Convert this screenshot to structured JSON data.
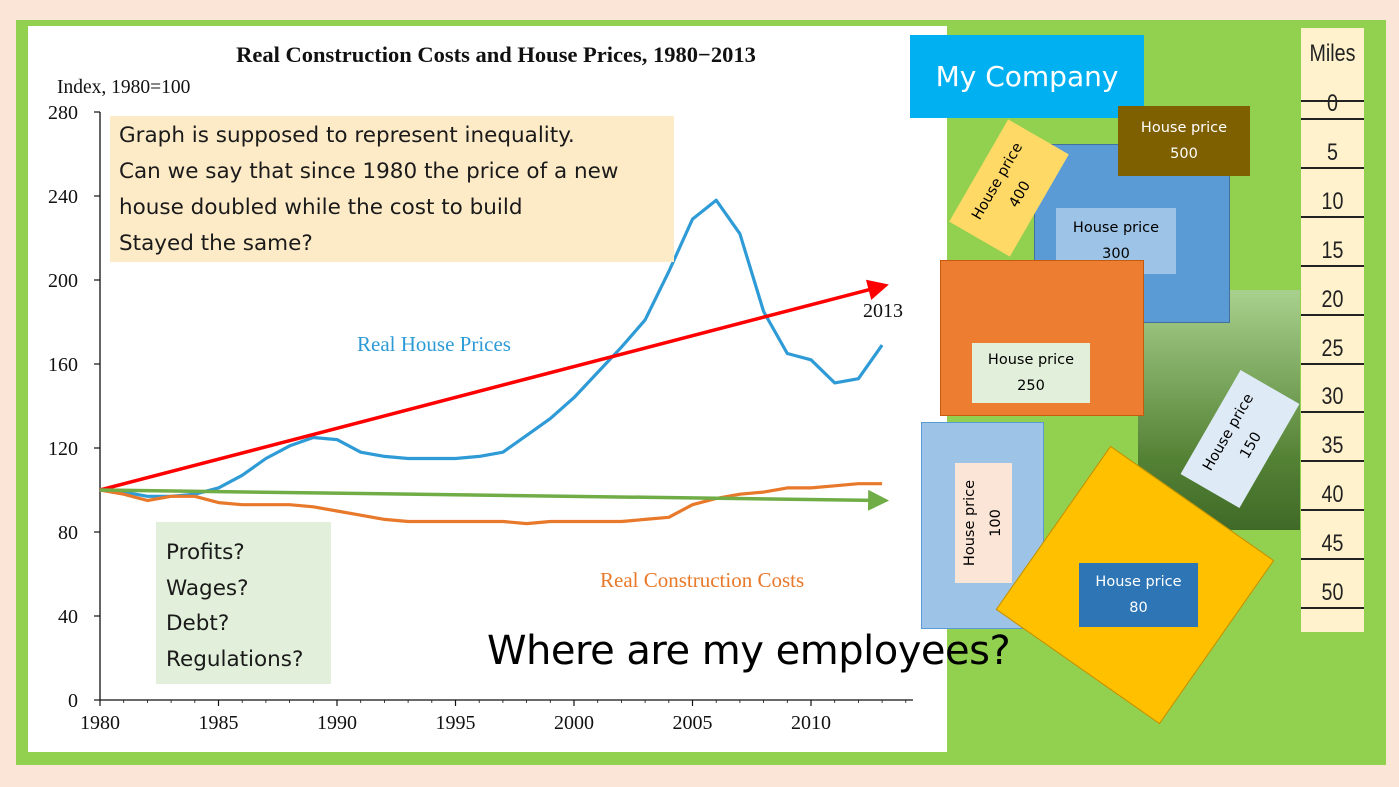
{
  "chart_data": {
    "type": "line",
    "title": "Real Construction Costs and House Prices, 1980−2013",
    "ylabel": "Index, 1980=100",
    "xlabel": "",
    "xlim": [
      1980,
      2014
    ],
    "ylim": [
      0,
      280
    ],
    "x_ticks": [
      "1980",
      "1985",
      "1990",
      "1995",
      "2000",
      "2005",
      "2010"
    ],
    "y_ticks": [
      "0",
      "40",
      "80",
      "120",
      "160",
      "200",
      "240",
      "280"
    ],
    "series": [
      {
        "name": "Real House Prices",
        "color": "#2e9bd6",
        "x": [
          1980,
          1981,
          1982,
          1983,
          1984,
          1985,
          1986,
          1987,
          1988,
          1989,
          1990,
          1991,
          1992,
          1993,
          1994,
          1995,
          1996,
          1997,
          1998,
          1999,
          2000,
          2001,
          2002,
          2003,
          2004,
          2005,
          2006,
          2007,
          2008,
          2009,
          2010,
          2011,
          2012,
          2013
        ],
        "values": [
          100,
          99,
          97,
          97,
          98,
          101,
          107,
          115,
          121,
          125,
          124,
          118,
          116,
          115,
          115,
          115,
          116,
          118,
          126,
          134,
          144,
          156,
          168,
          181,
          204,
          229,
          238,
          222,
          185,
          165,
          162,
          151,
          153,
          169
        ]
      },
      {
        "name": "Real Construction Costs",
        "color": "#e8782a",
        "x": [
          1980,
          1981,
          1982,
          1983,
          1984,
          1985,
          1986,
          1987,
          1988,
          1989,
          1990,
          1991,
          1992,
          1993,
          1994,
          1995,
          1996,
          1997,
          1998,
          1999,
          2000,
          2001,
          2002,
          2003,
          2004,
          2005,
          2006,
          2007,
          2008,
          2009,
          2010,
          2011,
          2012,
          2013
        ],
        "values": [
          100,
          98,
          95,
          97,
          97,
          94,
          93,
          93,
          93,
          92,
          90,
          88,
          86,
          85,
          85,
          85,
          85,
          85,
          84,
          85,
          85,
          85,
          85,
          86,
          87,
          93,
          96,
          98,
          99,
          101,
          101,
          102,
          103,
          103
        ]
      }
    ],
    "annotations": [
      {
        "text": "2013",
        "x": 2013,
        "y": 185
      },
      {
        "type": "arrow",
        "color": "#ff0000",
        "from": [
          1980,
          100
        ],
        "to": [
          2013,
          197
        ]
      },
      {
        "type": "arrow",
        "color": "#70ad47",
        "from": [
          1980,
          100
        ],
        "to": [
          2013,
          95
        ]
      }
    ]
  },
  "series_labels": {
    "house": "Real House Prices",
    "construction": "Real Construction Costs"
  },
  "callouts": {
    "question_lines": [
      "Graph is supposed to represent inequality.",
      "Can we say that since 1980 the price of a new",
      "house doubled while the cost to build",
      "Stayed the same?"
    ],
    "factors": [
      "Profits?",
      "Wages?",
      "Debt?",
      "Regulations?"
    ],
    "employees": "Where are my employees?"
  },
  "map": {
    "company": "My Company",
    "house_label": "House price",
    "houses": [
      {
        "price": "500",
        "fill": "#7f6000",
        "text_color": "#ffffff"
      },
      {
        "price": "400",
        "fill": "#ffd966",
        "text_color": "#000000"
      },
      {
        "price": "300",
        "fill": "#5b9bd5",
        "inner_fill": "#9dc3e6",
        "text_color": "#000000"
      },
      {
        "price": "250",
        "fill": "#ed7d31",
        "inner_fill": "#e2efda",
        "text_color": "#000000"
      },
      {
        "price": "150",
        "fill": "#deebf7",
        "text_color": "#000000"
      },
      {
        "price": "100",
        "fill": "#9dc3e6",
        "inner_fill": "#fbe5d6",
        "text_color": "#000000"
      },
      {
        "price": "80",
        "fill": "#ffc000",
        "inner_fill": "#2e75b6",
        "text_color": "#ffffff"
      }
    ],
    "miles_header": "Miles",
    "miles": [
      "0",
      "5",
      "10",
      "15",
      "20",
      "25",
      "30",
      "35",
      "40",
      "45",
      "50"
    ]
  },
  "colors": {
    "background": "#fbe5d6",
    "frame": "#92d050",
    "house_line": "#2e9bd6",
    "construction_line": "#e8782a",
    "red_arrow": "#ff0000",
    "green_arrow": "#70ad47"
  }
}
